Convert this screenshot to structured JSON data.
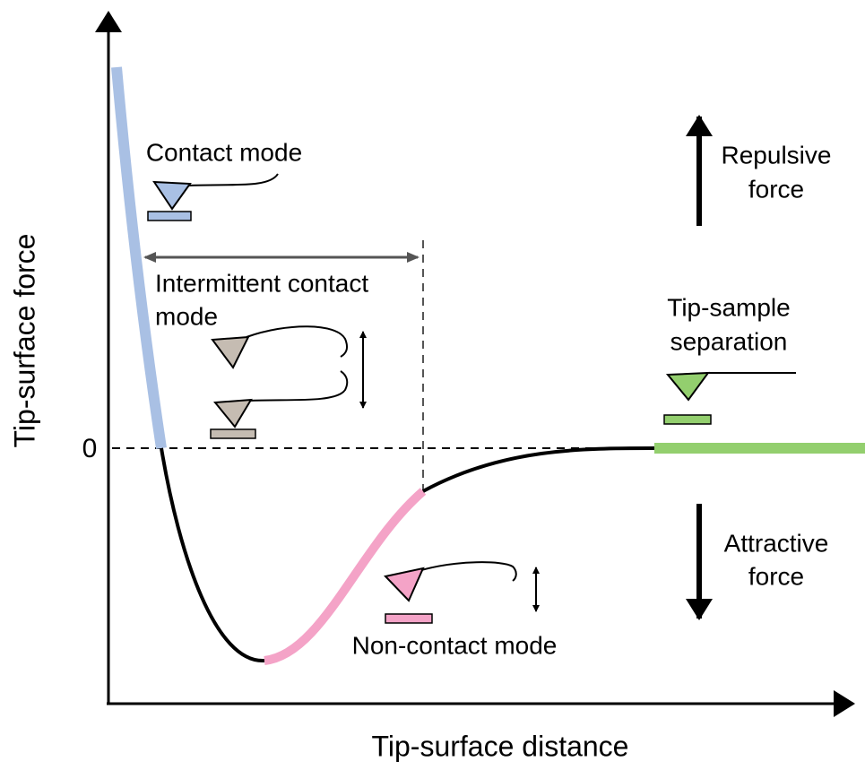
{
  "axes": {
    "y_label": "Tip-surface force",
    "x_label": "Tip-surface distance",
    "zero": "0"
  },
  "labels": {
    "contact": "Contact mode",
    "intermittent": [
      "Intermittent contact",
      "mode"
    ],
    "repulsive": [
      "Repulsive",
      "force"
    ],
    "separation": [
      "Tip-sample",
      "separation"
    ],
    "attractive": [
      "Attractive",
      "force"
    ],
    "non_contact": "Non-contact mode"
  }
}
